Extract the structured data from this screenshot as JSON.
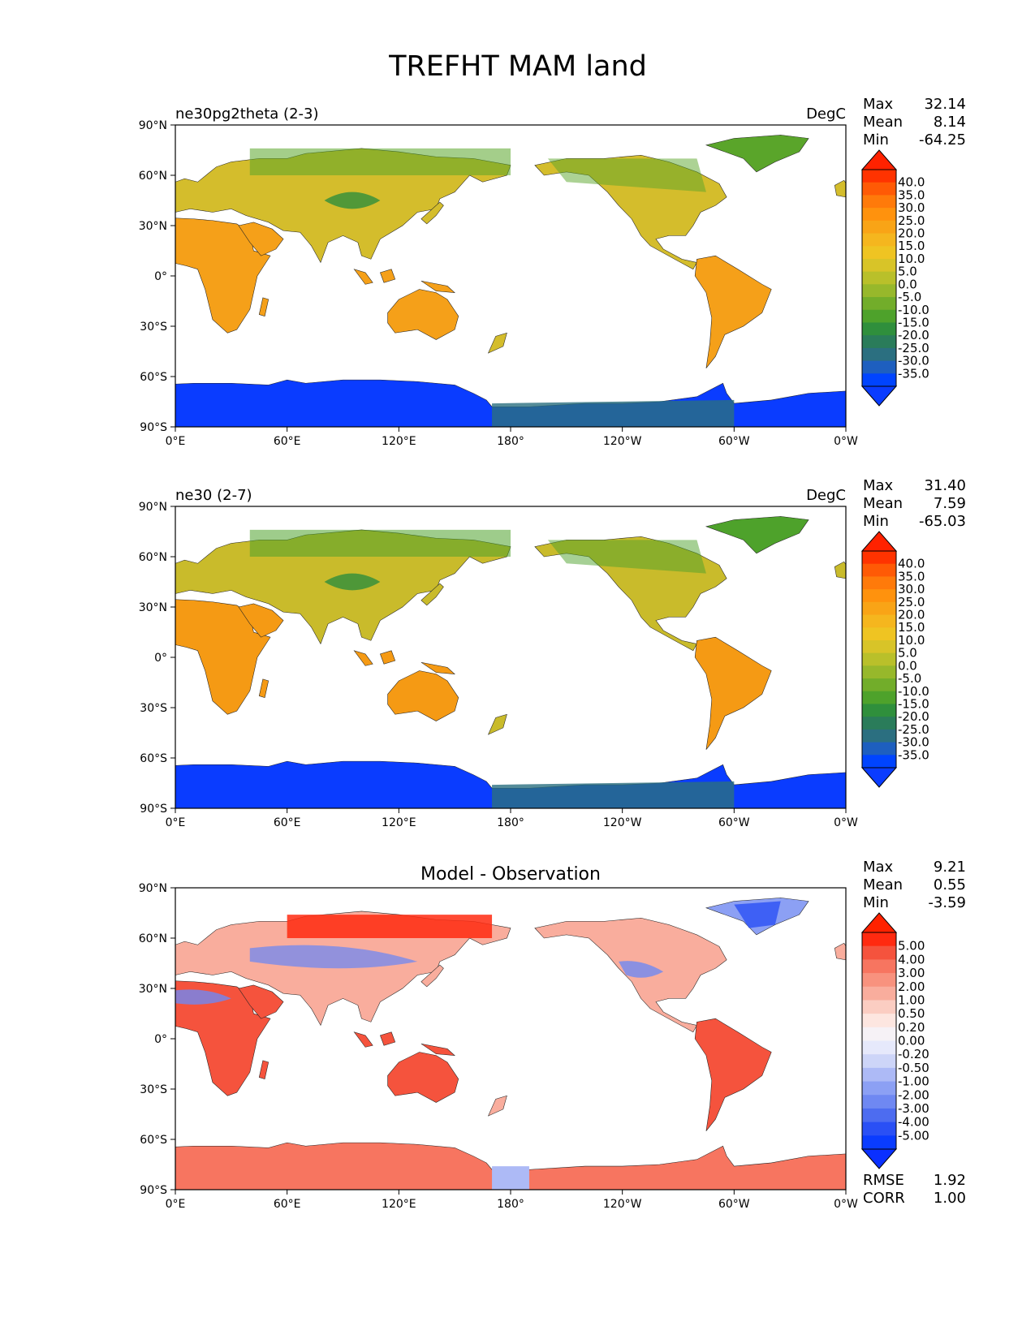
{
  "figure": {
    "title": "TREFHT MAM land"
  },
  "axes": {
    "lat_ticks": [
      "90°N",
      "60°N",
      "30°N",
      "0°",
      "30°S",
      "60°S",
      "90°S"
    ],
    "lon_ticks": [
      "0°E",
      "60°E",
      "120°E",
      "180°",
      "120°W",
      "60°W",
      "0°W"
    ]
  },
  "panels": [
    {
      "left_title": "ne30pg2theta (2-3)",
      "center_title": "",
      "units": "DegC",
      "stats": [
        {
          "label": "Max",
          "value": "32.14"
        },
        {
          "label": "Mean",
          "value": "8.14"
        },
        {
          "label": "Min",
          "value": "-64.25"
        }
      ],
      "colorbar_labels": [
        "40.0",
        "35.0",
        "30.0",
        "25.0",
        "20.0",
        "15.0",
        "10.0",
        "5.0",
        "0.0",
        "-5.0",
        "-10.0",
        "-15.0",
        "-20.0",
        "-25.0",
        "-30.0",
        "-35.0"
      ],
      "colorbar_colors": [
        "#ff3300",
        "#ff5a05",
        "#ff7a0a",
        "#ff920d",
        "#f9a416",
        "#f5b61e",
        "#efc422",
        "#d8c428",
        "#b9c02a",
        "#97b82b",
        "#72ad2a",
        "#4ea22b",
        "#2f8f3c",
        "#2a7c5a",
        "#2b6f80",
        "#1e5fbf",
        "#0044ff"
      ],
      "colorbar_over": "#ff2200",
      "colorbar_under": "#0a3cff",
      "footer_stats": []
    },
    {
      "left_title": "ne30 (2-7)",
      "center_title": "",
      "units": "DegC",
      "stats": [
        {
          "label": "Max",
          "value": "31.40"
        },
        {
          "label": "Mean",
          "value": "7.59"
        },
        {
          "label": "Min",
          "value": "-65.03"
        }
      ],
      "colorbar_labels": [
        "40.0",
        "35.0",
        "30.0",
        "25.0",
        "20.0",
        "15.0",
        "10.0",
        "5.0",
        "0.0",
        "-5.0",
        "-10.0",
        "-15.0",
        "-20.0",
        "-25.0",
        "-30.0",
        "-35.0"
      ],
      "colorbar_colors": [
        "#ff3300",
        "#ff5a05",
        "#ff7a0a",
        "#ff920d",
        "#f9a416",
        "#f5b61e",
        "#efc422",
        "#d8c428",
        "#b9c02a",
        "#97b82b",
        "#72ad2a",
        "#4ea22b",
        "#2f8f3c",
        "#2a7c5a",
        "#2b6f80",
        "#1e5fbf",
        "#0044ff"
      ],
      "colorbar_over": "#ff2200",
      "colorbar_under": "#0a3cff",
      "footer_stats": []
    },
    {
      "left_title": "",
      "center_title": "Model - Observation",
      "units": "",
      "stats": [
        {
          "label": "Max",
          "value": "9.21"
        },
        {
          "label": "Mean",
          "value": "0.55"
        },
        {
          "label": "Min",
          "value": "-3.59"
        }
      ],
      "colorbar_labels": [
        "5.00",
        "4.00",
        "3.00",
        "2.00",
        "1.00",
        "0.50",
        "0.20",
        "0.00",
        "-0.20",
        "-0.50",
        "-1.00",
        "-2.00",
        "-3.00",
        "-4.00",
        "-5.00"
      ],
      "colorbar_colors": [
        "#ff2a10",
        "#f5533d",
        "#f77560",
        "#f8927e",
        "#f9ad9d",
        "#fbcdc2",
        "#fde6e0",
        "#f6f2f6",
        "#e6e9fb",
        "#cdd5f8",
        "#adbaf6",
        "#8ca0f4",
        "#6f88f2",
        "#4d6cf0",
        "#2a50f5",
        "#0a3cff"
      ],
      "colorbar_over": "#ff2200",
      "colorbar_under": "#0a30ff",
      "footer_stats": [
        {
          "label": "RMSE",
          "value": "1.92"
        },
        {
          "label": "CORR",
          "value": "1.00"
        }
      ]
    }
  ]
}
